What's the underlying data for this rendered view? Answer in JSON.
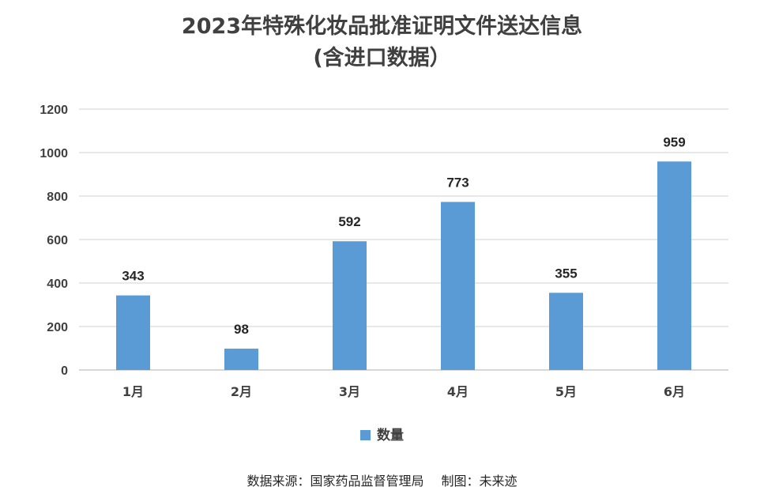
{
  "colors": {
    "bar": "#5b9bd5",
    "grid": "#d9d9d9",
    "text": "#404040"
  },
  "chart_data": {
    "type": "bar",
    "title_lines": [
      "2023年特殊化妆品批准证明文件送达信息",
      "(含进口数据）"
    ],
    "categories": [
      "1月",
      "2月",
      "3月",
      "4月",
      "5月",
      "6月"
    ],
    "series": [
      {
        "name": "数量",
        "values": [
          343,
          98,
          592,
          773,
          355,
          959
        ]
      }
    ],
    "ylim": [
      0,
      1200
    ],
    "yticks": [
      0,
      200,
      400,
      600,
      800,
      1000,
      1200
    ],
    "grid": true,
    "legend_position": "bottom",
    "data_labels": true
  },
  "footer": {
    "source": "数据来源：国家药品监督管理局",
    "maker": "制图：未来迹"
  }
}
